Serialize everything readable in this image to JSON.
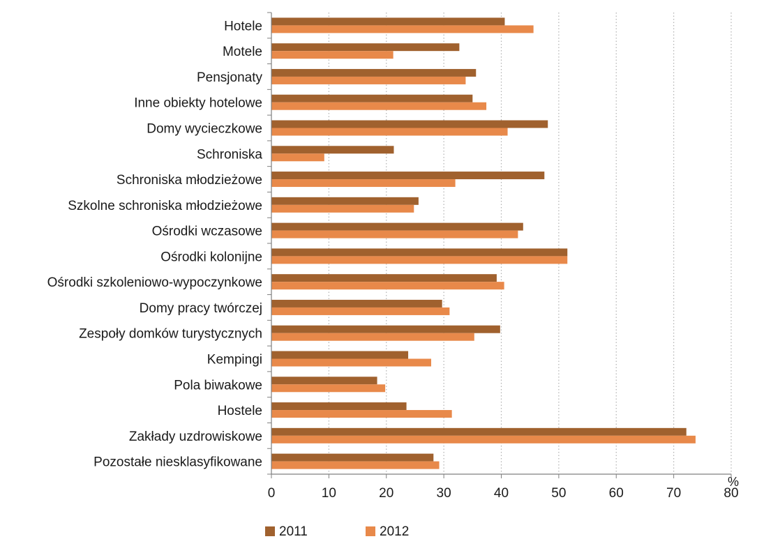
{
  "chart_data": {
    "type": "bar",
    "orientation": "horizontal",
    "categories": [
      "Hotele",
      "Motele",
      "Pensjonaty",
      "Inne obiekty hotelowe",
      "Domy wycieczkowe",
      "Schroniska",
      "Schroniska młodzieżowe",
      "Szkolne schroniska młodzieżowe",
      "Ośrodki wczasowe",
      "Ośrodki kolonijne",
      "Ośrodki szkoleniowo-wypoczynkowe",
      "Domy pracy twórczej",
      "Zespoły domków turystycznych",
      "Kempingi",
      "Pola biwakowe",
      "Hostele",
      "Zakłady uzdrowiskowe",
      "Pozostałe niesklasyfikowane"
    ],
    "series": [
      {
        "name": "2011",
        "color": "#a0612e",
        "values": [
          40.6,
          32.7,
          35.6,
          35.0,
          48.1,
          21.3,
          47.5,
          25.6,
          43.8,
          51.5,
          39.2,
          29.7,
          39.8,
          23.8,
          18.4,
          23.5,
          72.2,
          28.2
        ]
      },
      {
        "name": "2012",
        "color": "#e8894a",
        "values": [
          45.6,
          21.2,
          33.8,
          37.4,
          41.1,
          9.2,
          32.0,
          24.8,
          42.9,
          51.5,
          40.5,
          31.0,
          35.3,
          27.8,
          19.8,
          31.4,
          73.8,
          29.2
        ]
      }
    ],
    "xlim": [
      0,
      80
    ],
    "xticks": [
      "0",
      "10",
      "20",
      "30",
      "40",
      "50",
      "60",
      "70",
      "80"
    ],
    "xunit": "%",
    "title": "",
    "xlabel": "",
    "ylabel": "",
    "grid": "vertical dotted",
    "legend": "bottom"
  }
}
